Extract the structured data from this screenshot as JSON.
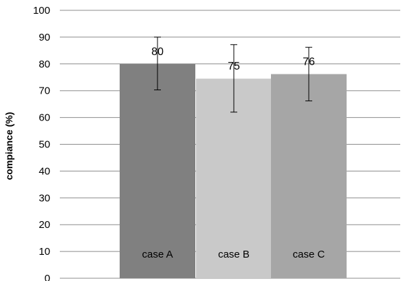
{
  "chart_data": {
    "type": "bar",
    "title": "",
    "xlabel": "",
    "ylabel": "compiance (%)",
    "ylim": [
      0,
      100
    ],
    "yticks": [
      0,
      10,
      20,
      30,
      40,
      50,
      60,
      70,
      80,
      90,
      100
    ],
    "grid": true,
    "legend": "none",
    "categories": [
      "case A",
      "case B",
      "case C"
    ],
    "values": [
      80,
      74.5,
      76.2
    ],
    "data_labels": [
      "80",
      "75",
      "76"
    ],
    "error_bars": {
      "low": [
        70.3,
        62.0,
        66.2
      ],
      "high": [
        90.0,
        87.2,
        86.2
      ]
    },
    "colors": [
      "#808080",
      "#c9c9c9",
      "#a6a6a6"
    ],
    "gridline_color": "#8c8c8c",
    "errorbar_color": "#000000"
  }
}
